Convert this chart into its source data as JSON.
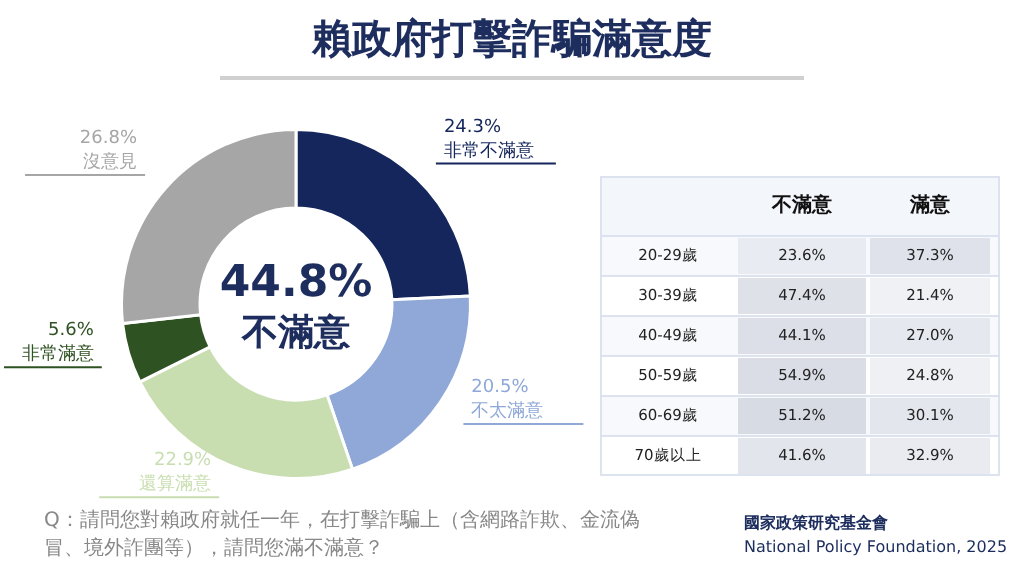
{
  "chart_data": [
    {
      "type": "donut",
      "title": "賴政府打擊詐騙滿意度",
      "categories": [
        "非常不滿意",
        "不太滿意",
        "還算滿意",
        "非常滿意",
        "沒意見"
      ],
      "values": [
        24.3,
        20.5,
        22.9,
        5.6,
        26.8
      ],
      "colors": [
        "#14265c",
        "#8fa8d8",
        "#c9deb0",
        "#2f5222",
        "#a6a6a6"
      ],
      "value_labels": [
        "24.3%",
        "20.5%",
        "22.9%",
        "5.6%",
        "26.8%"
      ],
      "annotations": [
        "44.8%",
        "不滿意",
        "Q：請問您對賴政府就任一年，在打擊詐騙上（含網路詐欺、金流偽冒、境外詐團等），請問您滿不滿意？",
        "國家政策研究基金會",
        "National Policy Foundation, 2025"
      ]
    },
    {
      "type": "heatmap",
      "categories": [
        "不滿意",
        "滿意"
      ],
      "y_categories": [
        "20-29歲",
        "30-39歲",
        "40-49歲",
        "50-59歲",
        "60-69歲",
        "70歲以上"
      ],
      "cells": [
        [
          23.6,
          37.3
        ],
        [
          47.4,
          21.4
        ],
        [
          44.1,
          27.0
        ],
        [
          54.9,
          24.8
        ],
        [
          51.2,
          30.1
        ],
        [
          41.6,
          32.9
        ]
      ],
      "cell_labels": [
        [
          "23.6%",
          "37.3%"
        ],
        [
          "47.4%",
          "21.4%"
        ],
        [
          "44.1%",
          "27.0%"
        ],
        [
          "54.9%",
          "24.8%"
        ],
        [
          "51.2%",
          "30.1%"
        ],
        [
          "41.6%",
          "32.9%"
        ]
      ]
    }
  ]
}
